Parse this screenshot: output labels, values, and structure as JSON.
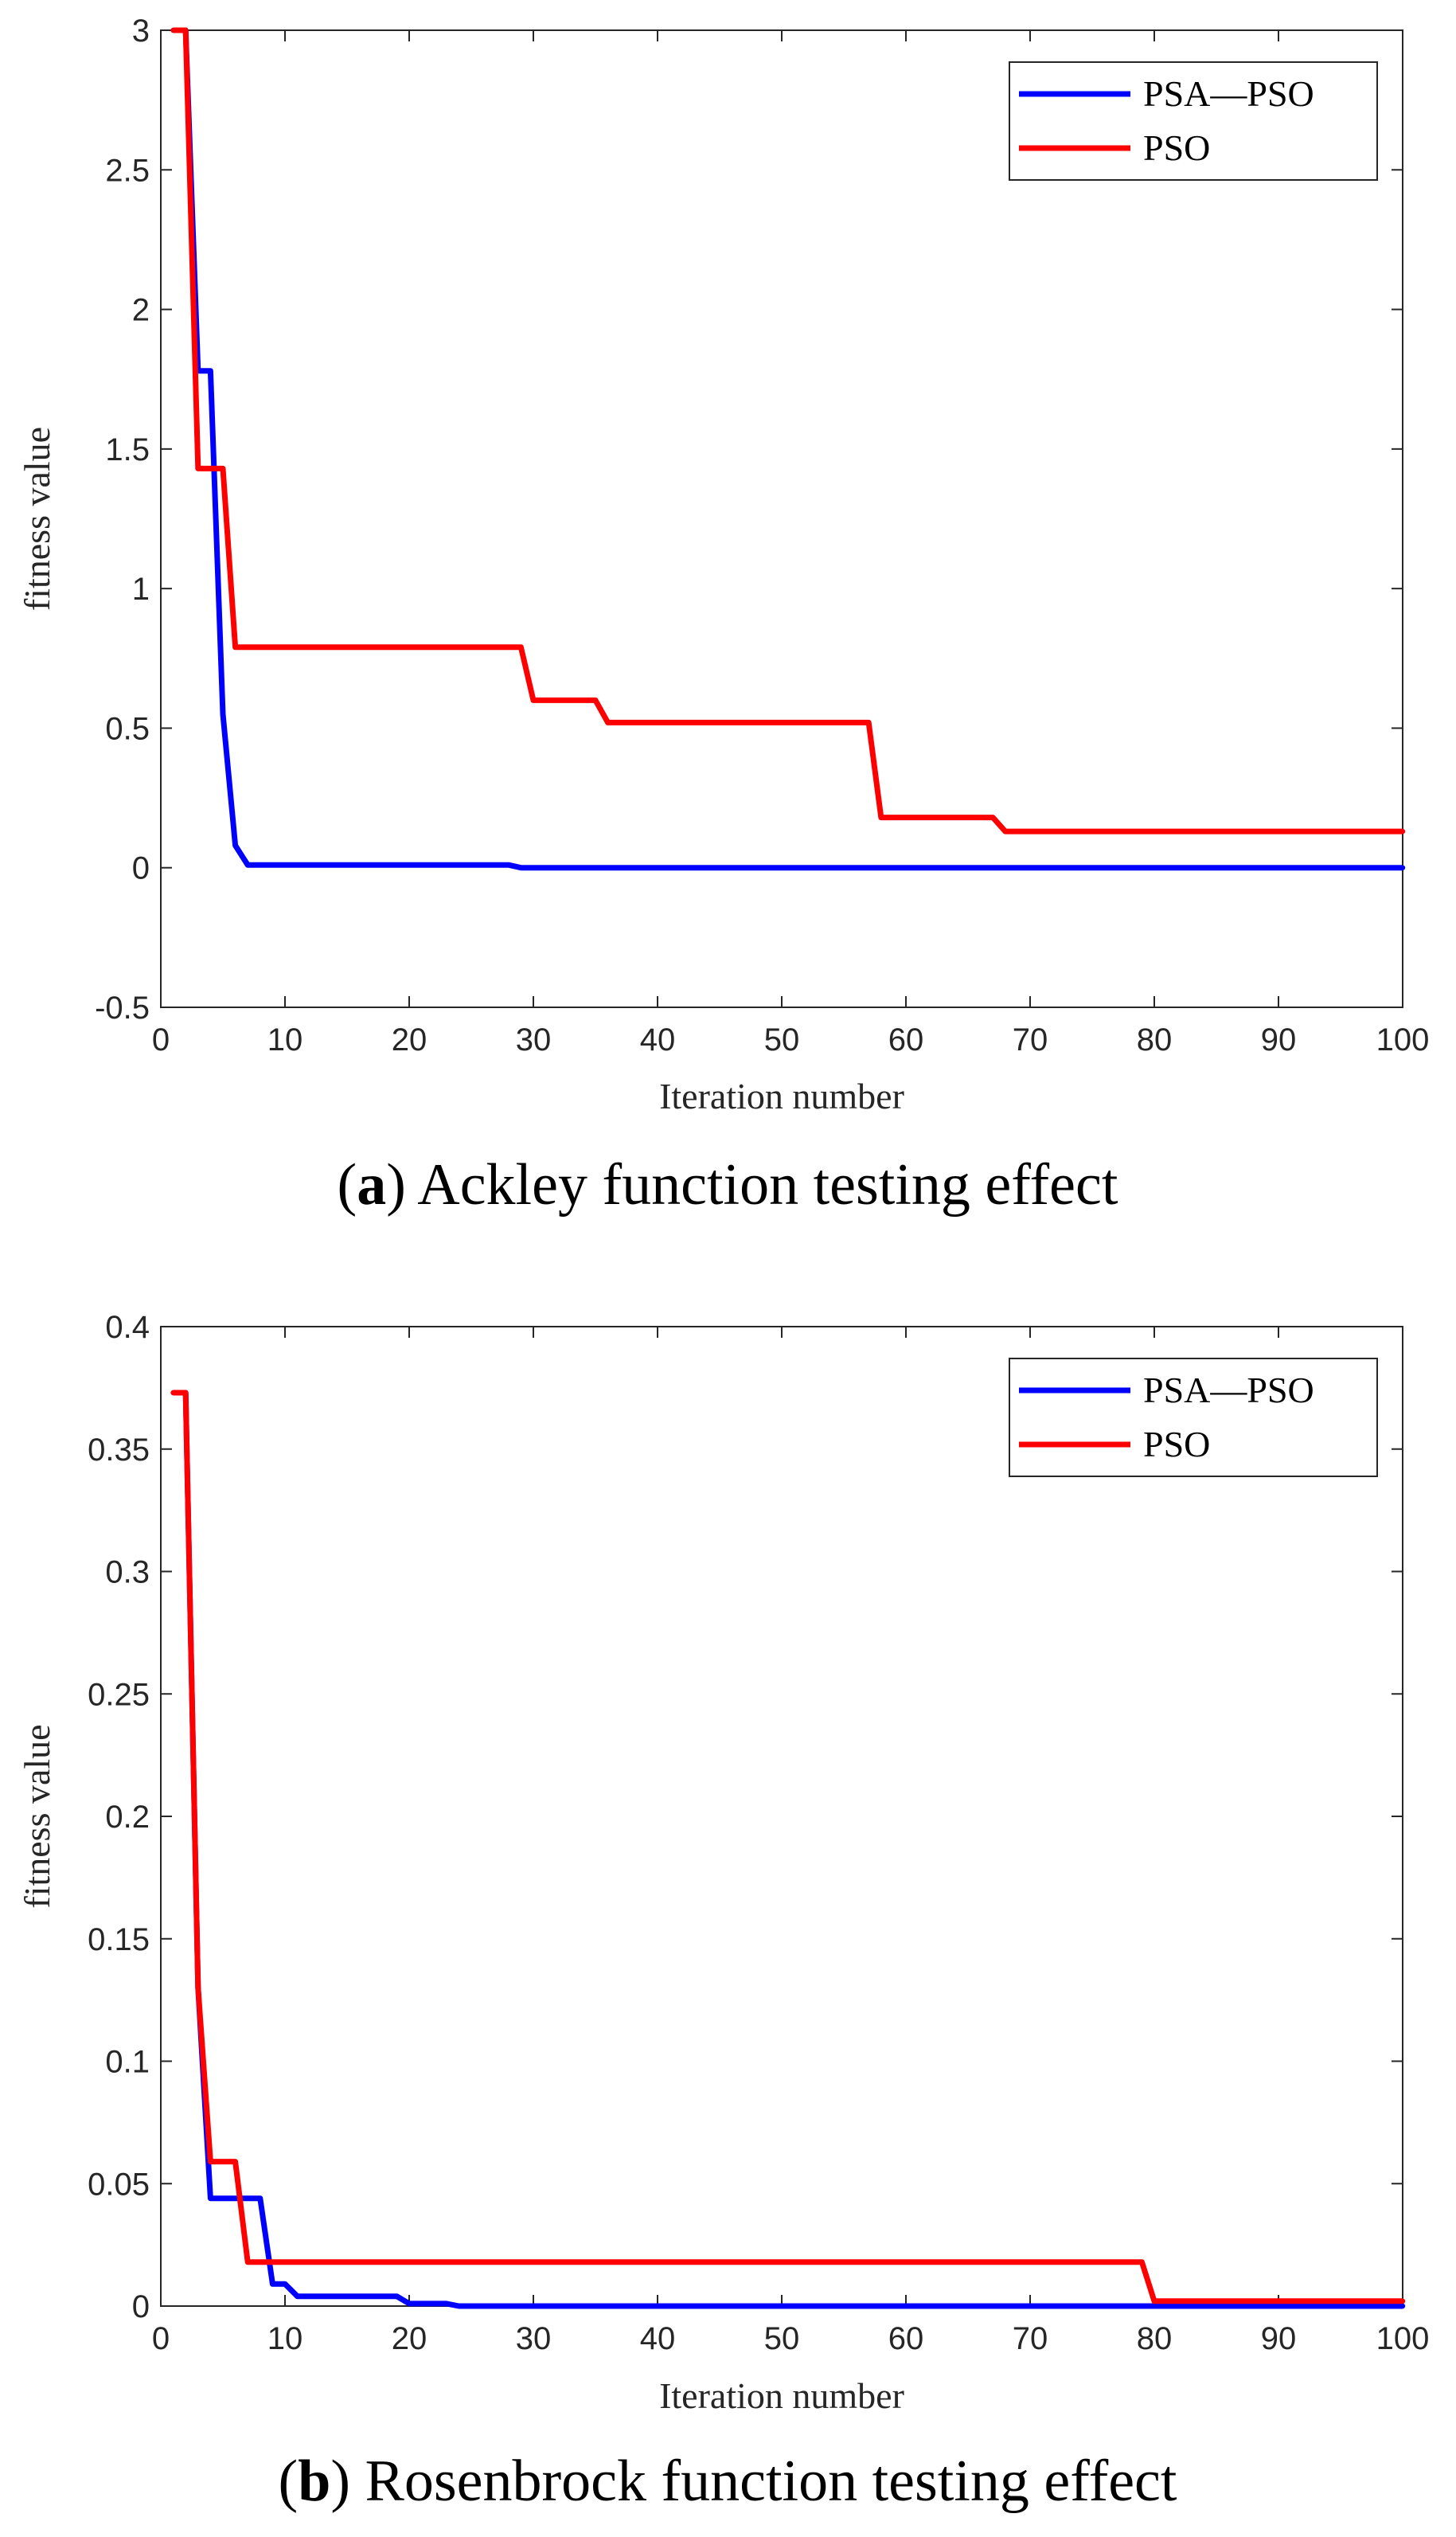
{
  "chart_data": [
    {
      "type": "line",
      "caption_letter": "a",
      "caption_text": " Ackley function testing effect",
      "xlabel": "Iteration number",
      "ylabel": "fitness value",
      "xlim": [
        0,
        100
      ],
      "ylim": [
        -0.5,
        3
      ],
      "xticks": [
        0,
        10,
        20,
        30,
        40,
        50,
        60,
        70,
        80,
        90,
        100
      ],
      "yticks": [
        -0.5,
        0,
        0.5,
        1,
        1.5,
        2,
        2.5,
        3
      ],
      "ytick_labels": [
        "-0.5",
        "0",
        "0.5",
        "1",
        "1.5",
        "2",
        "2.5",
        "3"
      ],
      "legend_position": "top-right",
      "series": [
        {
          "name": "PSA—PSO",
          "color": "#0000ff",
          "breakpoints": [
            [
              1,
              3.0
            ],
            [
              2,
              3.0
            ],
            [
              3,
              1.78
            ],
            [
              4,
              1.78
            ],
            [
              5,
              0.55
            ],
            [
              6,
              0.08
            ],
            [
              7,
              0.01
            ],
            [
              28,
              0.01
            ],
            [
              29,
              0.0
            ],
            [
              100,
              0.0
            ]
          ]
        },
        {
          "name": "PSO",
          "color": "#ff0000",
          "breakpoints": [
            [
              1,
              3.0
            ],
            [
              2,
              3.0
            ],
            [
              3,
              1.43
            ],
            [
              5,
              1.43
            ],
            [
              6,
              0.79
            ],
            [
              29,
              0.79
            ],
            [
              30,
              0.6
            ],
            [
              35,
              0.6
            ],
            [
              36,
              0.52
            ],
            [
              57,
              0.52
            ],
            [
              58,
              0.18
            ],
            [
              67,
              0.18
            ],
            [
              68,
              0.13
            ],
            [
              100,
              0.13
            ]
          ]
        }
      ]
    },
    {
      "type": "line",
      "caption_letter": "b",
      "caption_text": " Rosenbrock function testing effect",
      "xlabel": "Iteration number",
      "ylabel": "fitness value",
      "xlim": [
        0,
        100
      ],
      "ylim": [
        0,
        0.4
      ],
      "xticks": [
        0,
        10,
        20,
        30,
        40,
        50,
        60,
        70,
        80,
        90,
        100
      ],
      "yticks": [
        0,
        0.05,
        0.1,
        0.15,
        0.2,
        0.25,
        0.3,
        0.35,
        0.4
      ],
      "ytick_labels": [
        "0",
        "0.05",
        "0.1",
        "0.15",
        "0.2",
        "0.25",
        "0.3",
        "0.35",
        "0.4"
      ],
      "legend_position": "top-right",
      "series": [
        {
          "name": "PSA—PSO",
          "color": "#0000ff",
          "breakpoints": [
            [
              1,
              0.373
            ],
            [
              2,
              0.373
            ],
            [
              3,
              0.13
            ],
            [
              4,
              0.044
            ],
            [
              8,
              0.044
            ],
            [
              9,
              0.009
            ],
            [
              10,
              0.009
            ],
            [
              11,
              0.004
            ],
            [
              19,
              0.004
            ],
            [
              20,
              0.001
            ],
            [
              23,
              0.001
            ],
            [
              24,
              0.0
            ],
            [
              100,
              0.0
            ]
          ]
        },
        {
          "name": "PSO",
          "color": "#ff0000",
          "breakpoints": [
            [
              1,
              0.373
            ],
            [
              2,
              0.373
            ],
            [
              3,
              0.13
            ],
            [
              4,
              0.059
            ],
            [
              6,
              0.059
            ],
            [
              7,
              0.018
            ],
            [
              79,
              0.018
            ],
            [
              80,
              0.002
            ],
            [
              100,
              0.002
            ]
          ]
        }
      ]
    }
  ]
}
